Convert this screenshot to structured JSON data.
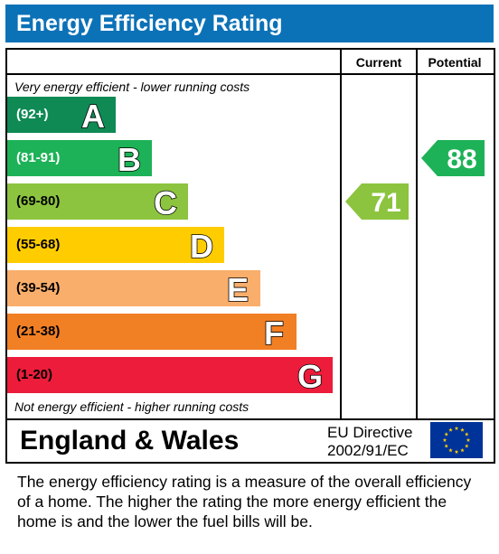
{
  "title": "Energy Efficiency Rating",
  "columns": {
    "current": "Current",
    "potential": "Potential"
  },
  "top_caption": "Very energy efficient - lower running costs",
  "bottom_caption": "Not energy efficient - higher running costs",
  "bands": [
    {
      "letter": "A",
      "range": "(92+)",
      "color": "#0f8a55",
      "range_color": "#ffffff"
    },
    {
      "letter": "B",
      "range": "(81-91)",
      "color": "#1db257",
      "range_color": "#ffffff"
    },
    {
      "letter": "C",
      "range": "(69-80)",
      "color": "#8cc43f",
      "range_color": "#000000"
    },
    {
      "letter": "D",
      "range": "(55-68)",
      "color": "#ffcc00",
      "range_color": "#000000"
    },
    {
      "letter": "E",
      "range": "(39-54)",
      "color": "#f9ae6b",
      "range_color": "#000000"
    },
    {
      "letter": "F",
      "range": "(21-38)",
      "color": "#f17f24",
      "range_color": "#000000"
    },
    {
      "letter": "G",
      "range": "(1-20)",
      "color": "#ec1c3a",
      "range_color": "#000000"
    }
  ],
  "chart_data": {
    "type": "bar",
    "categories": [
      "A",
      "B",
      "C",
      "D",
      "E",
      "F",
      "G"
    ],
    "ranges": [
      "(92+)",
      "(81-91)",
      "(69-80)",
      "(55-68)",
      "(39-54)",
      "(21-38)",
      "(1-20)"
    ],
    "current": {
      "value": 71,
      "band": "C",
      "color": "#8cc43f"
    },
    "potential": {
      "value": 88,
      "band": "B",
      "color": "#1db257"
    }
  },
  "footer": {
    "region": "England & Wales",
    "directive_line1": "EU Directive",
    "directive_line2": "2002/91/EC",
    "flag_icon": "eu-flag-icon"
  },
  "description": "The energy efficiency rating is a measure of the overall efficiency of a home.  The higher the rating the more energy efficient the home is and the lower the fuel bills will be."
}
